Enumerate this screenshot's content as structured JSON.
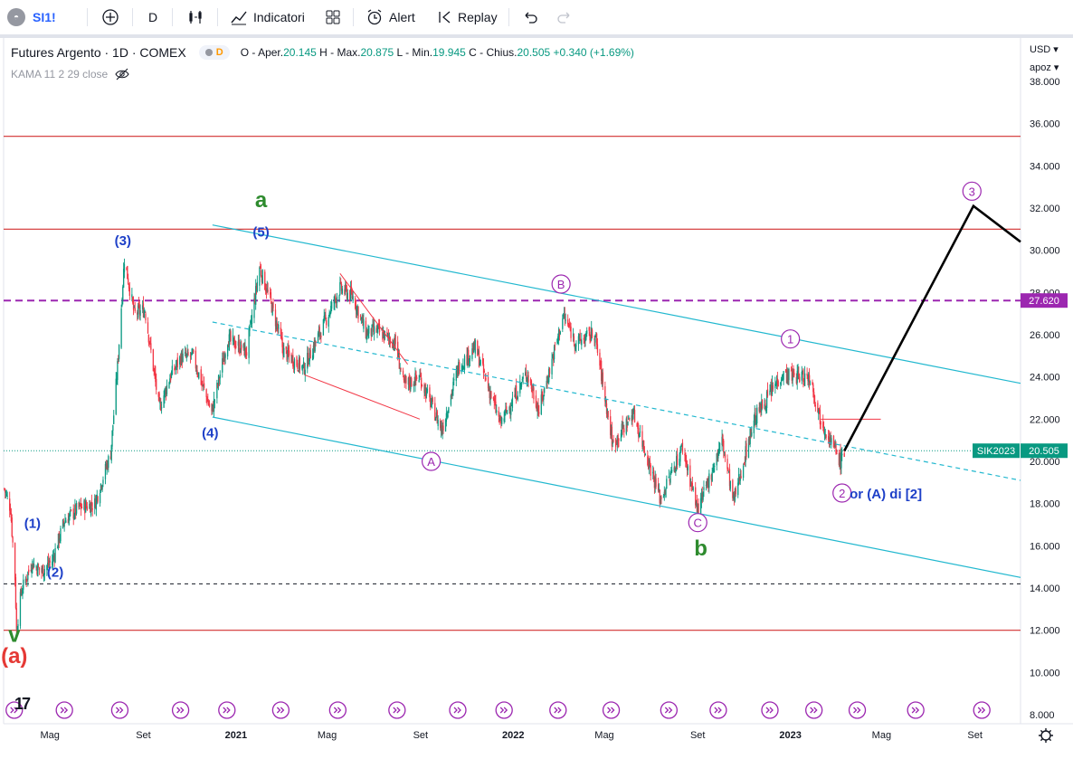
{
  "toolbar": {
    "symbol": "SI1!",
    "interval": "D",
    "indicators_label": "Indicatori",
    "alert_label": "Alert",
    "replay_label": "Replay"
  },
  "legend": {
    "title": "Futures Argento · 1D · COMEX",
    "badge": "D",
    "o_label": "O - Aper.",
    "o_value": "20.145",
    "h_label": "H - Max.",
    "h_value": "20.875",
    "l_label": "L - Min.",
    "l_value": "19.945",
    "c_label": "C - Chius.",
    "c_value": "20.505",
    "change": "+0.340 (+1.69%)",
    "indicator": "KAMA 11 2 29 close"
  },
  "price_scale": {
    "currency": "USD",
    "unit": "apoz",
    "ticks": [
      "38.000",
      "36.000",
      "34.000",
      "32.000",
      "30.000",
      "28.000",
      "26.000",
      "24.000",
      "22.000",
      "20.000",
      "18.000",
      "16.000",
      "14.000",
      "12.000",
      "10.000",
      "8.000"
    ],
    "label_27620": "27.620",
    "label_price": "20.505",
    "label_contract": "SIK2023"
  },
  "time_scale": {
    "ticks": [
      "Mag",
      "Set",
      "2021",
      "Mag",
      "Set",
      "2022",
      "Mag",
      "Set",
      "2023",
      "Mag",
      "Set"
    ]
  },
  "annotations": {
    "a": "a",
    "b": "b",
    "v": "v",
    "a_red": "(a)",
    "w1": "(1)",
    "w2": "(2)",
    "w3": "(3)",
    "w4": "(4)",
    "w5": "(5)",
    "cA": "A",
    "cB": "B",
    "cC": "C",
    "c1": "1",
    "c2": "2",
    "c3": "3",
    "alt": "or (A) di [2]"
  },
  "colors": {
    "up": "#089981",
    "down": "#f23645",
    "channel": "#22b8cf",
    "hline": "#d32f2f",
    "dash": "#9c27b0",
    "wave_blue": "#1e40c8",
    "wave_green": "#2e8b2e",
    "circle": "#9c27b0"
  },
  "chart_data": {
    "type": "candlestick",
    "symbol": "SI1!",
    "interval": "1D",
    "ylim": [
      8,
      39
    ],
    "xrange": [
      "2020-03",
      "2023-10"
    ],
    "series_path": [
      [
        "2020-03-02",
        18.7
      ],
      [
        "2020-03-10",
        17.8
      ],
      [
        "2020-03-16",
        14.5
      ],
      [
        "2020-03-18",
        12.0
      ],
      [
        "2020-03-24",
        13.8
      ],
      [
        "2020-04-07",
        15.2
      ],
      [
        "2020-04-20",
        14.8
      ],
      [
        "2020-05-04",
        15.3
      ],
      [
        "2020-05-20",
        17.2
      ],
      [
        "2020-06-08",
        17.8
      ],
      [
        "2020-06-29",
        18.0
      ],
      [
        "2020-07-20",
        20.4
      ],
      [
        "2020-07-29",
        24.5
      ],
      [
        "2020-08-07",
        29.6
      ],
      [
        "2020-08-20",
        27.0
      ],
      [
        "2020-09-03",
        27.2
      ],
      [
        "2020-09-22",
        22.5
      ],
      [
        "2020-10-06",
        24.0
      ],
      [
        "2020-10-20",
        24.9
      ],
      [
        "2020-11-05",
        25.0
      ],
      [
        "2020-11-30",
        22.3
      ],
      [
        "2020-12-21",
        25.8
      ],
      [
        "2021-01-15",
        25.2
      ],
      [
        "2021-02-01",
        29.2
      ],
      [
        "2021-02-16",
        27.5
      ],
      [
        "2021-03-05",
        25.2
      ],
      [
        "2021-03-31",
        24.4
      ],
      [
        "2021-04-20",
        26.0
      ],
      [
        "2021-05-18",
        28.2
      ],
      [
        "2021-06-04",
        27.8
      ],
      [
        "2021-06-21",
        26.1
      ],
      [
        "2021-07-06",
        26.2
      ],
      [
        "2021-07-30",
        25.6
      ],
      [
        "2021-08-10",
        23.6
      ],
      [
        "2021-08-31",
        24.0
      ],
      [
        "2021-09-29",
        21.5
      ],
      [
        "2021-10-21",
        24.5
      ],
      [
        "2021-11-12",
        25.4
      ],
      [
        "2021-12-15",
        21.8
      ],
      [
        "2022-01-19",
        24.2
      ],
      [
        "2022-02-04",
        22.4
      ],
      [
        "2022-03-08",
        26.9
      ],
      [
        "2022-03-25",
        25.6
      ],
      [
        "2022-04-18",
        26.1
      ],
      [
        "2022-05-12",
        20.8
      ],
      [
        "2022-06-08",
        22.3
      ],
      [
        "2022-07-14",
        18.2
      ],
      [
        "2022-08-12",
        20.7
      ],
      [
        "2022-09-01",
        17.6
      ],
      [
        "2022-09-20",
        19.6
      ],
      [
        "2022-10-03",
        21.0
      ],
      [
        "2022-10-18",
        18.1
      ],
      [
        "2022-11-14",
        22.0
      ],
      [
        "2022-12-20",
        24.1
      ],
      [
        "2023-01-27",
        24.0
      ],
      [
        "2023-02-08",
        22.2
      ],
      [
        "2023-02-24",
        20.9
      ],
      [
        "2023-03-08",
        20.0
      ],
      [
        "2023-03-13",
        20.5
      ]
    ],
    "last": {
      "open": 20.145,
      "high": 20.875,
      "low": 19.945,
      "close": 20.505,
      "change": 0.34,
      "change_pct": 1.69
    },
    "horizontal_lines": [
      {
        "price": 35.4,
        "style": "solid",
        "color": "#d32f2f"
      },
      {
        "price": 31.0,
        "style": "solid",
        "color": "#d32f2f"
      },
      {
        "price": 27.62,
        "style": "dashed",
        "color": "#9c27b0"
      },
      {
        "price": 14.2,
        "style": "dashed",
        "color": "#131722"
      },
      {
        "price": 12.0,
        "style": "solid",
        "color": "#d32f2f"
      },
      {
        "price": 20.505,
        "style": "dotted",
        "color": "#089981"
      }
    ],
    "channel": {
      "upper": [
        [
          "2020-12-01",
          31.2
        ],
        [
          "2023-10-31",
          23.7
        ]
      ],
      "lower": [
        [
          "2020-12-01",
          22.1
        ],
        [
          "2023-10-31",
          14.5
        ]
      ],
      "mid": [
        [
          "2020-12-01",
          26.6
        ],
        [
          "2023-10-31",
          19.1
        ]
      ]
    },
    "red_lines": [
      [
        [
          "2021-04-01",
          24.1
        ],
        [
          "2021-08-31",
          22.0
        ]
      ],
      [
        [
          "2021-05-18",
          28.9
        ],
        [
          "2021-08-15",
          24.6
        ]
      ],
      [
        [
          "2023-02-10",
          22.0
        ],
        [
          "2023-04-30",
          22.0
        ]
      ]
    ],
    "projection": [
      [
        "2023-03-13",
        20.5
      ],
      [
        "2023-08-30",
        32.1
      ],
      [
        "2023-10-31",
        30.4
      ]
    ],
    "wave_labels": [
      {
        "text": "(a)",
        "date": "2020-03-15",
        "price": 10.7,
        "color": "red"
      },
      {
        "text": "v",
        "date": "2020-03-15",
        "price": 11.7,
        "color": "green"
      },
      {
        "text": "(1)",
        "date": "2020-04-08",
        "price": 17.1,
        "color": "blue"
      },
      {
        "text": "(2)",
        "date": "2020-05-08",
        "price": 14.8,
        "color": "blue"
      },
      {
        "text": "(3)",
        "date": "2020-08-05",
        "price": 30.5,
        "color": "blue"
      },
      {
        "text": "(4)",
        "date": "2020-11-28",
        "price": 21.4,
        "color": "blue"
      },
      {
        "text": "(5)",
        "date": "2021-02-03",
        "price": 30.9,
        "color": "blue"
      },
      {
        "text": "a",
        "date": "2021-02-03",
        "price": 32.3,
        "color": "green"
      },
      {
        "text": "A",
        "date": "2021-09-15",
        "price": 20.0,
        "color": "purple"
      },
      {
        "text": "B",
        "date": "2022-03-05",
        "price": 28.4,
        "color": "purple"
      },
      {
        "text": "C",
        "date": "2022-09-01",
        "price": 17.1,
        "color": "purple"
      },
      {
        "text": "b",
        "date": "2022-09-05",
        "price": 15.8,
        "color": "green"
      },
      {
        "text": "1",
        "date": "2023-01-01",
        "price": 25.8,
        "color": "purple"
      },
      {
        "text": "2",
        "date": "2023-03-10",
        "price": 18.5,
        "color": "purple"
      },
      {
        "text": "3",
        "date": "2023-08-28",
        "price": 32.8,
        "color": "purple"
      },
      {
        "text": "or (A) di [2]",
        "date": "2023-03-20",
        "price": 18.5,
        "color": "blue"
      }
    ]
  }
}
